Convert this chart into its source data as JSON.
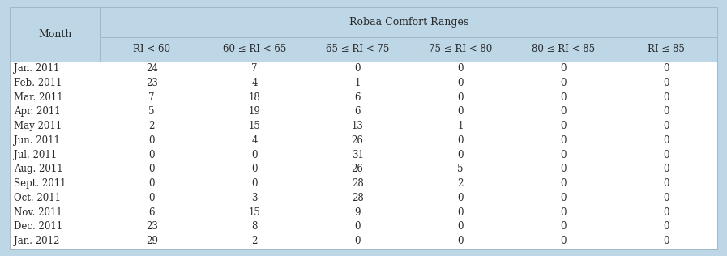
{
  "title": "Robaa Comfort Ranges",
  "col_month": "Month",
  "columns": [
    "RI < 60",
    "60 ≤ RI < 65",
    "65 ≤ RI < 75",
    "75 ≤ RI < 80",
    "80 ≤ RI < 85",
    "RI ≤ 85"
  ],
  "months": [
    "Jan. 2011",
    "Feb. 2011",
    "Mar. 2011",
    "Apr. 2011",
    "May 2011",
    "Jun. 2011",
    "Jul. 2011",
    "Aug. 2011",
    "Sept. 2011",
    "Oct. 2011",
    "Nov. 2011",
    "Dec. 2011",
    "Jan. 2012"
  ],
  "data": [
    [
      24,
      7,
      0,
      0,
      0,
      0
    ],
    [
      23,
      4,
      1,
      0,
      0,
      0
    ],
    [
      7,
      18,
      6,
      0,
      0,
      0
    ],
    [
      5,
      19,
      6,
      0,
      0,
      0
    ],
    [
      2,
      15,
      13,
      1,
      0,
      0
    ],
    [
      0,
      4,
      26,
      0,
      0,
      0
    ],
    [
      0,
      0,
      31,
      0,
      0,
      0
    ],
    [
      0,
      0,
      26,
      5,
      0,
      0
    ],
    [
      0,
      0,
      28,
      2,
      0,
      0
    ],
    [
      0,
      3,
      28,
      0,
      0,
      0
    ],
    [
      6,
      15,
      9,
      0,
      0,
      0
    ],
    [
      23,
      8,
      0,
      0,
      0,
      0
    ],
    [
      29,
      2,
      0,
      0,
      0,
      0
    ]
  ],
  "header_bg": "#bdd7e7",
  "body_bg": "#ffffff",
  "outer_bg": "#bdd7e7",
  "line_color": "#a0b8c8",
  "text_color": "#2a2a2a",
  "font_size": 8.5,
  "header_font_size": 9.0,
  "fig_w": 8.97,
  "fig_h": 3.16,
  "dpi": 100
}
